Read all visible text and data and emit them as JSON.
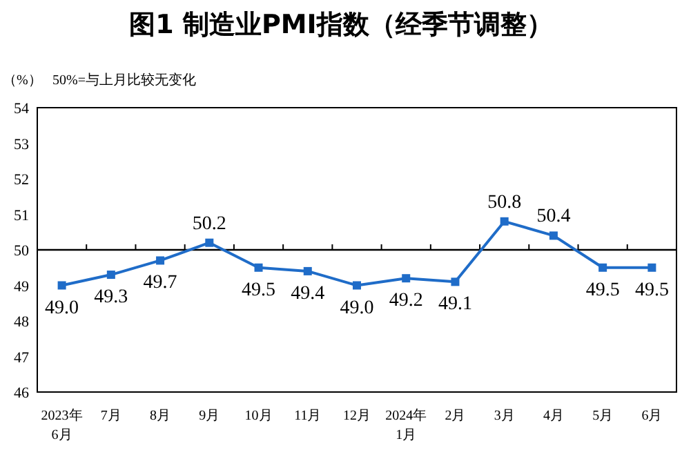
{
  "chart_data": {
    "type": "line",
    "title": "图1  制造业PMI指数（经季节调整）",
    "ylabel": "（%）",
    "annotations": [
      "50%=与上月比较无变化"
    ],
    "categories": [
      "2023年\n6月",
      "7月",
      "8月",
      "9月",
      "10月",
      "11月",
      "12月",
      "2024年\n1月",
      "2月",
      "3月",
      "4月",
      "5月",
      "6月"
    ],
    "series": [
      {
        "color": "#1f6cc8",
        "values": [
          49.0,
          49.3,
          49.7,
          50.2,
          49.5,
          49.4,
          49.0,
          49.2,
          49.1,
          50.8,
          50.4,
          49.5,
          49.5
        ],
        "value_labels": [
          "49.0",
          "49.3",
          "49.7",
          "50.2",
          "49.5",
          "49.4",
          "49.0",
          "49.2",
          "49.1",
          "50.8",
          "50.4",
          "49.5",
          "49.5"
        ]
      }
    ],
    "ylim": [
      46,
      54
    ],
    "yticks": [
      46,
      47,
      48,
      49,
      50,
      51,
      52,
      53,
      54
    ],
    "grid": false,
    "marker": "square",
    "line_style": "solid",
    "ref_lines": [
      {
        "axis": "y",
        "value": 50,
        "color": "#000000"
      }
    ]
  }
}
